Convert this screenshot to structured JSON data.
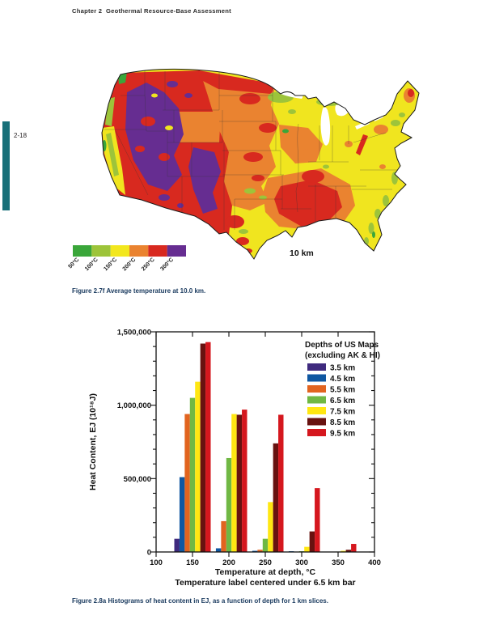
{
  "page": {
    "header": "Chapter 2  Geothermal Resource-Base Assessment",
    "page_number": "2-18",
    "fig1_caption": "Figure 2.7f Average temperature at 10.0 km.",
    "fig2_caption": "Figure 2.8a Histograms of heat content in EJ, as a function of depth for 1 km slices."
  },
  "map": {
    "depth_label": "10 km",
    "legend_labels": [
      "50°C",
      "100°C",
      "150°C",
      "200°C",
      "250°C",
      "300°C"
    ],
    "legend_colors": [
      "#3aa63a",
      "#9dc43a",
      "#f2e71e",
      "#ea8330",
      "#d8291f",
      "#662d91"
    ],
    "region_colors": {
      "base": "#f0e51f",
      "orange": "#ea8330",
      "red": "#d8291f",
      "purple": "#662d91",
      "green_dark": "#3aa63a",
      "green_light": "#9dc43a"
    }
  },
  "chart_data": {
    "type": "bar",
    "title": "",
    "xlabel": "Temperature at depth, °C",
    "xlabel2": "Temperature label centered under 6.5 km bar",
    "ylabel": "Heat Content, EJ (10¹⁸J)",
    "xlim": [
      100,
      400
    ],
    "ylim": [
      0,
      1500000
    ],
    "x_ticks": [
      100,
      150,
      200,
      250,
      300,
      350,
      400
    ],
    "y_ticks": [
      0,
      500000,
      1000000,
      1500000
    ],
    "y_tick_labels": [
      "0",
      "500,000",
      "1,000,000",
      "1,500,000"
    ],
    "y_minor_step": 100000,
    "grid": false,
    "legend_position": "top-right",
    "legend_title": [
      "Depths of US Maps",
      "(excluding AK & HI)"
    ],
    "categories": [
      150,
      200,
      250,
      300,
      350
    ],
    "series": [
      {
        "name": "3.5 km",
        "color": "#3f2a7e",
        "values": [
          90000,
          0,
          0,
          0,
          0
        ]
      },
      {
        "name": "4.5 km",
        "color": "#0f57a1",
        "values": [
          510000,
          25000,
          8000,
          5000,
          0
        ]
      },
      {
        "name": "5.5 km",
        "color": "#e2641f",
        "values": [
          940000,
          210000,
          15000,
          0,
          0
        ]
      },
      {
        "name": "6.5 km",
        "color": "#70b844",
        "values": [
          1050000,
          640000,
          90000,
          5000,
          3000
        ]
      },
      {
        "name": "7.5 km",
        "color": "#ffe712",
        "values": [
          1160000,
          940000,
          340000,
          35000,
          8000
        ]
      },
      {
        "name": "8.5 km",
        "color": "#681210",
        "values": [
          1420000,
          935000,
          740000,
          140000,
          15000
        ]
      },
      {
        "name": "9.5 km",
        "color": "#d5171e",
        "values": [
          1430000,
          970000,
          935000,
          435000,
          55000
        ]
      }
    ]
  }
}
